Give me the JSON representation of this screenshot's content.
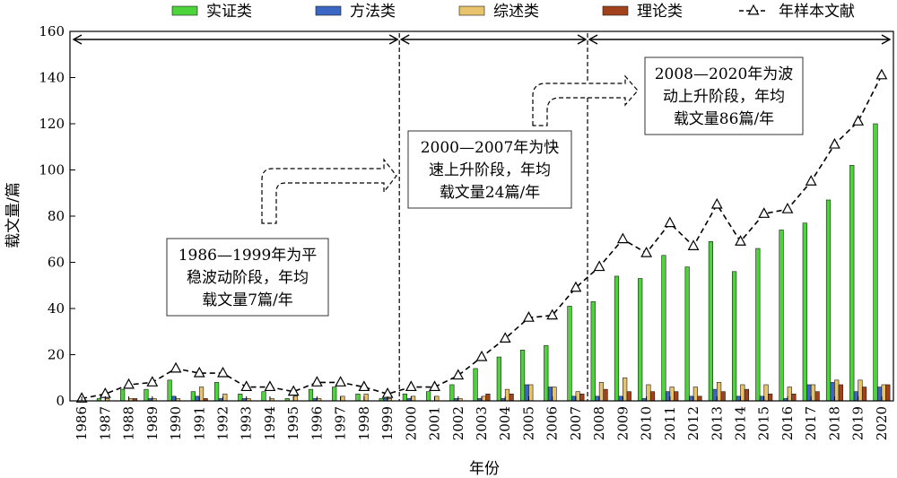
{
  "chart_data": {
    "type": "bar",
    "xlabel": "年份",
    "ylabel": "载文量/篇",
    "ylim": [
      0,
      160
    ],
    "yticks": [
      0,
      20,
      40,
      60,
      80,
      100,
      120,
      140,
      160
    ],
    "categories": [
      "1986",
      "1987",
      "1988",
      "1989",
      "1990",
      "1991",
      "1992",
      "1993",
      "1994",
      "1995",
      "1996",
      "1997",
      "1998",
      "1999",
      "2000",
      "2001",
      "2002",
      "2003",
      "2004",
      "2005",
      "2006",
      "2007",
      "2008",
      "2009",
      "2010",
      "2011",
      "2012",
      "2013",
      "2014",
      "2015",
      "2016",
      "2017",
      "2018",
      "2019",
      "2020"
    ],
    "series": [
      {
        "name": "实证类",
        "kind": "bar",
        "color": "#4cd43a",
        "values": [
          0,
          1,
          5,
          5,
          9,
          4,
          8,
          3,
          4,
          1,
          5,
          6,
          3,
          1,
          3,
          4,
          7,
          14,
          19,
          22,
          24,
          41,
          43,
          54,
          53,
          63,
          58,
          69,
          56,
          66,
          74,
          77,
          87,
          102,
          120
        ]
      },
      {
        "name": "方法类",
        "kind": "bar",
        "color": "#3a66c4",
        "values": [
          0,
          0,
          0,
          1,
          2,
          2,
          1,
          1,
          0,
          0,
          1,
          0,
          0,
          1,
          1,
          0,
          1,
          1,
          1,
          7,
          6,
          2,
          2,
          2,
          1,
          4,
          2,
          5,
          2,
          2,
          1,
          7,
          8,
          4,
          6
        ]
      },
      {
        "name": "综述类",
        "kind": "bar",
        "color": "#e8c36b",
        "values": [
          0,
          1,
          1,
          1,
          1,
          6,
          3,
          1,
          1,
          2,
          1,
          2,
          3,
          1,
          2,
          2,
          1,
          2,
          5,
          7,
          6,
          4,
          8,
          10,
          7,
          6,
          6,
          8,
          7,
          7,
          6,
          7,
          9,
          9,
          7
        ]
      },
      {
        "name": "理论类",
        "kind": "bar",
        "color": "#a2421c",
        "values": [
          0,
          0,
          1,
          0,
          0,
          1,
          0,
          0,
          0,
          0,
          0,
          0,
          0,
          0,
          0,
          0,
          0,
          3,
          3,
          0,
          0,
          3,
          5,
          4,
          4,
          4,
          2,
          4,
          5,
          3,
          3,
          4,
          7,
          6,
          7
        ]
      },
      {
        "name": "年样本文献",
        "kind": "line",
        "marker": "triangle",
        "color": "#000000",
        "values": [
          1,
          3,
          7,
          8,
          14,
          12,
          12,
          6,
          6,
          4,
          8,
          8,
          6,
          3,
          6,
          6,
          11,
          19,
          27,
          36,
          37,
          49,
          58,
          70,
          64,
          77,
          67,
          85,
          69,
          81,
          83,
          95,
          111,
          121,
          141
        ]
      }
    ],
    "phases": [
      {
        "label": "1986—1999年为平稳波动阶段，年均载文量7篇/年",
        "lines": [
          "1986—1999年为平",
          "稳波动阶段，年均",
          "载文量7篇/年"
        ],
        "start": "1986",
        "end": "1999"
      },
      {
        "label": "2000—2007年为快速上升阶段，年均载文量24篇/年",
        "lines": [
          "2000—2007年为快",
          "速上升阶段，年均",
          "载文量24篇/年"
        ],
        "start": "2000",
        "end": "2007"
      },
      {
        "label": "2008—2020年为波动上升阶段，年均载文量86篇/年",
        "lines": [
          "2008—2020年为波",
          "动上升阶段，年均",
          "载文量86篇/年"
        ],
        "start": "2008",
        "end": "2020"
      }
    ],
    "legend_position": "top",
    "grid": false
  }
}
